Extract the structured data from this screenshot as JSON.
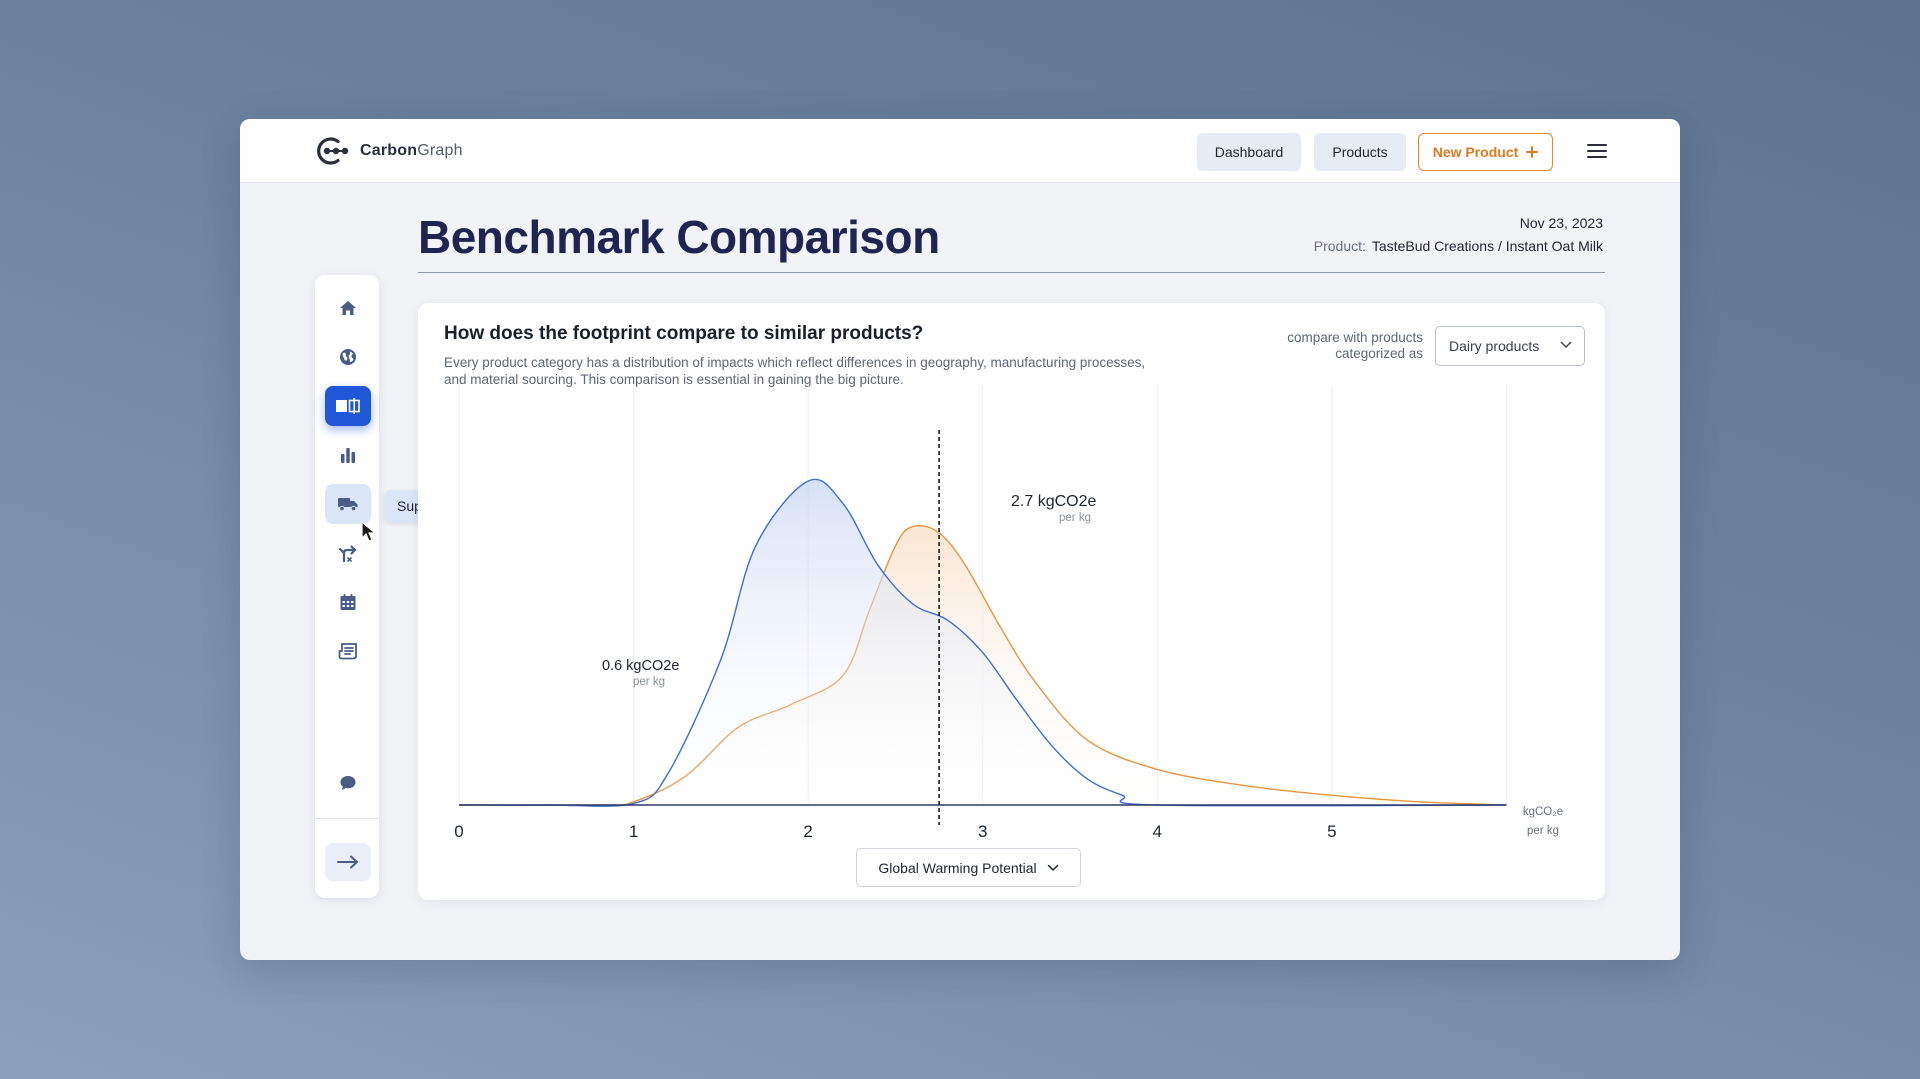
{
  "app": {
    "logo_part1": "Carbon",
    "logo_part2": "Graph"
  },
  "nav": {
    "dashboard": "Dashboard",
    "products": "Products",
    "new_product": "New Product"
  },
  "page": {
    "title": "Benchmark Comparison",
    "date": "Nov 23, 2023",
    "product_label": "Product:",
    "product_value": "TasteBud Creations / Instant Oat Milk"
  },
  "sidebar": {
    "items": [
      {
        "icon": "home-icon"
      },
      {
        "icon": "globe-icon"
      },
      {
        "icon": "compare-icon",
        "active": true
      },
      {
        "icon": "bar-chart-icon"
      },
      {
        "icon": "truck-icon",
        "hover": true
      },
      {
        "icon": "split-arrow-icon"
      },
      {
        "icon": "calendar-icon"
      },
      {
        "icon": "report-icon"
      },
      {
        "icon": "chat-icon"
      }
    ],
    "tooltip": "Supply chain"
  },
  "card": {
    "title": "How does the footprint compare to similar products?",
    "description": "Every product category has a distribution of impacts which reflect differences in geography, manufacturing processes, and material sourcing. This comparison is essential in gaining the big picture.",
    "compare_label": "compare with products categorized as",
    "category": "Dairy products",
    "metric": "Global Warming Potential"
  },
  "colors": {
    "blue_series": "#3d6fd1",
    "orange_series": "#e6953e",
    "accent": "#1f57d6",
    "title": "#1f2451"
  },
  "chart_data": {
    "type": "area",
    "xlim": [
      0,
      6
    ],
    "x_ticks": [
      "0",
      "1",
      "2",
      "3",
      "4",
      "5"
    ],
    "x_unit_line1": "kgCO₂e",
    "x_unit_line2": "per kg",
    "series": [
      {
        "color": "#3d6fd1",
        "x": [
          0,
          0.5,
          1.0,
          1.2,
          1.5,
          1.7,
          2.0,
          2.2,
          2.4,
          2.6,
          2.8,
          3.0,
          3.2,
          3.4,
          3.6,
          3.8,
          4.0,
          6.0
        ],
        "y": [
          0,
          0,
          0.005,
          0.1,
          0.45,
          0.8,
          1.0,
          0.93,
          0.74,
          0.62,
          0.57,
          0.47,
          0.32,
          0.18,
          0.08,
          0.03,
          0.0,
          0.0
        ]
      },
      {
        "color": "#e6953e",
        "x": [
          0,
          0.8,
          1.0,
          1.3,
          1.6,
          1.9,
          2.2,
          2.35,
          2.5,
          2.6,
          2.75,
          2.9,
          3.1,
          3.3,
          3.6,
          4.0,
          4.5,
          5.0,
          5.5,
          6.0
        ],
        "y": [
          0,
          0,
          0.01,
          0.09,
          0.24,
          0.31,
          0.4,
          0.6,
          0.8,
          0.86,
          0.84,
          0.74,
          0.55,
          0.38,
          0.2,
          0.11,
          0.06,
          0.03,
          0.01,
          0.0
        ]
      }
    ],
    "annotations": [
      {
        "x": 1.0,
        "value": "0.6 kgCO2e",
        "unit": "per kg"
      },
      {
        "x": 2.75,
        "value": "2.7 kgCO2e",
        "unit": "per kg",
        "marker": "dashed-line"
      }
    ]
  }
}
